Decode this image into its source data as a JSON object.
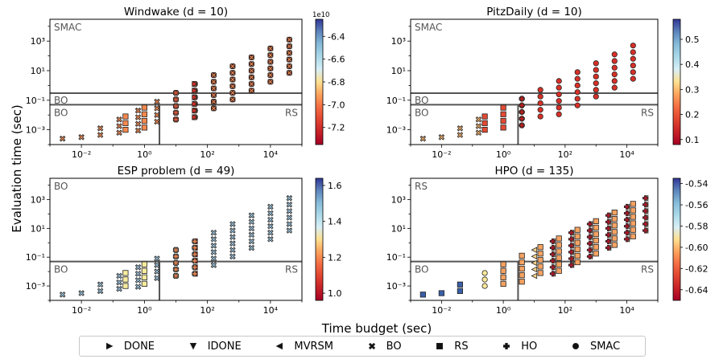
{
  "figure": {
    "ylabel": "Evaluation time (sec)",
    "xlabel": "Time budget (sec)"
  },
  "legend": [
    {
      "label": "DONE",
      "marker": "triangle-right"
    },
    {
      "label": "IDONE",
      "marker": "triangle-down"
    },
    {
      "label": "MVRSM",
      "marker": "triangle-left"
    },
    {
      "label": "BO",
      "marker": "x-filled"
    },
    {
      "label": "RS",
      "marker": "square"
    },
    {
      "label": "HO",
      "marker": "plus"
    },
    {
      "label": "SMAC",
      "marker": "circle"
    }
  ],
  "chart_data": [
    {
      "type": "scatter",
      "title": "Windwake (d = 10)",
      "x_scale": "log",
      "y_scale": "log",
      "xlim": [
        0.001,
        100000
      ],
      "ylim": [
        0.0001,
        30000
      ],
      "x_ticks": [
        "10⁻²",
        "10⁰",
        "10²",
        "10⁴"
      ],
      "y_ticks": [
        "10⁻³",
        "10⁻¹",
        "10¹",
        "10³"
      ],
      "region_lines": {
        "upper": 0.3,
        "lower": 0.05
      },
      "region_labels": {
        "top_left": "SMAC",
        "mid_left": "BO",
        "low_left": "BO",
        "low_right": "RS"
      },
      "vertical_line_x": 3,
      "colorbar": {
        "min": -7.35,
        "max": -6.25,
        "ticks": [
          "-6.4",
          "-6.6",
          "-6.8",
          "-7.0",
          "-7.2"
        ],
        "tick_values": [
          -6.4,
          -6.6,
          -6.8,
          -7.0,
          -7.2
        ],
        "offset_label": "1e10",
        "cmap": "RdYlBu"
      },
      "series": [
        {
          "method": "SMAC",
          "marker": "circle",
          "start_exp": 1.6,
          "end_exp": 4.6,
          "fill": "#c9211e"
        },
        {
          "method": "BO",
          "marker": "x-filled",
          "start_exp": -2.6,
          "end_exp": 4.6,
          "fill": "#f08a52"
        },
        {
          "method": "RS",
          "marker": "square",
          "start_exp": -0.6,
          "end_exp": 0.4,
          "fill": "#f5894f"
        },
        {
          "method": "HO",
          "marker": "plus",
          "start_exp": 1.0,
          "end_exp": 1.6,
          "fill": "#e65a3c"
        },
        {
          "method": "DONE",
          "marker": "triangle-right",
          "start_exp": 1.6,
          "end_exp": 1.6,
          "fill": "#d73027"
        }
      ]
    },
    {
      "type": "scatter",
      "title": "PitzDaily (d = 10)",
      "x_scale": "log",
      "y_scale": "log",
      "xlim": [
        0.001,
        100000
      ],
      "ylim": [
        0.0001,
        30000
      ],
      "x_ticks": [
        "10⁻²",
        "10⁰",
        "10²",
        "10⁴"
      ],
      "y_ticks": [
        "10⁻³",
        "10⁻¹",
        "10¹",
        "10³"
      ],
      "region_lines": {
        "upper": 0.3,
        "lower": 0.05
      },
      "region_labels": {
        "top_left": "SMAC",
        "mid_left": "BO",
        "low_left": "BO",
        "low_right": "RS"
      },
      "vertical_line_x": 3,
      "colorbar": {
        "min": 0.08,
        "max": 0.58,
        "ticks": [
          "0.5",
          "0.4",
          "0.3",
          "0.2",
          "0.1"
        ],
        "tick_values": [
          0.5,
          0.4,
          0.3,
          0.2,
          0.1
        ],
        "offset_label": "",
        "cmap": "RdYlBu"
      },
      "series": [
        {
          "method": "SMAC",
          "marker": "circle",
          "start_exp": 0.6,
          "end_exp": 4.6,
          "fill": "#d73027"
        },
        {
          "method": "BO",
          "marker": "x-filled",
          "start_exp": -2.6,
          "end_exp": -0.6,
          "fill": "#f7b26a"
        },
        {
          "method": "RS",
          "marker": "square",
          "start_exp": -0.6,
          "end_exp": 0.4,
          "fill": "#e34a33"
        },
        {
          "method": "HO",
          "marker": "plus",
          "start_exp": 0.6,
          "end_exp": 1.0,
          "fill": "#c9211e"
        }
      ]
    },
    {
      "type": "scatter",
      "title": "ESP problem  (d = 49)",
      "x_scale": "log",
      "y_scale": "log",
      "xlim": [
        0.001,
        100000
      ],
      "ylim": [
        0.0001,
        30000
      ],
      "x_ticks": [
        "10⁻²",
        "10⁰",
        "10²",
        "10⁴"
      ],
      "y_ticks": [
        "10⁻³",
        "10⁻¹",
        "10¹",
        "10³"
      ],
      "region_lines": {
        "lower": 0.05
      },
      "region_labels": {
        "top_left": "BO",
        "low_left": "BO",
        "low_right": "RS"
      },
      "vertical_line_x": 3,
      "colorbar": {
        "min": 0.96,
        "max": 1.64,
        "ticks": [
          "1.6",
          "1.4",
          "1.2",
          "1.0"
        ],
        "tick_values": [
          1.6,
          1.4,
          1.2,
          1.0
        ],
        "offset_label": "",
        "cmap": "RdYlBu"
      },
      "series": [
        {
          "method": "BO",
          "marker": "x-filled",
          "start_exp": -2.6,
          "end_exp": 4.6,
          "fill": "#9fc7e0"
        },
        {
          "method": "RS",
          "marker": "square",
          "start_exp": -0.6,
          "end_exp": 0.4,
          "fill": "#f7eb9f"
        },
        {
          "method": "MVRSM",
          "marker": "triangle-left",
          "start_exp": 1.6,
          "end_exp": 1.6,
          "fill": "#d73027"
        },
        {
          "method": "HO",
          "marker": "plus",
          "start_exp": 1.0,
          "end_exp": 1.6,
          "fill": "#f08a52"
        }
      ]
    },
    {
      "type": "scatter",
      "title": "HPO (d = 135)",
      "x_scale": "log",
      "y_scale": "log",
      "xlim": [
        0.001,
        100000
      ],
      "ylim": [
        0.0001,
        30000
      ],
      "x_ticks": [
        "10⁻²",
        "10⁰",
        "10²",
        "10⁴"
      ],
      "y_ticks": [
        "10⁻³",
        "10⁻¹",
        "10¹",
        "10³"
      ],
      "region_lines": {
        "lower": 0.05
      },
      "region_labels": {
        "top_left": "RS",
        "low_left": "BO",
        "low_right": "RS"
      },
      "vertical_line_x": 3,
      "colorbar": {
        "min": -0.65,
        "max": -0.535,
        "ticks": [
          "-0.54",
          "-0.56",
          "-0.58",
          "-0.60",
          "-0.62",
          "-0.64"
        ],
        "tick_values": [
          -0.54,
          -0.56,
          -0.58,
          -0.6,
          -0.62,
          -0.64
        ],
        "offset_label": "",
        "cmap": "RdYlBu"
      },
      "series": [
        {
          "method": "BO",
          "marker": "square",
          "start_exp": -2.6,
          "end_exp": -1.0,
          "fill": "#3a5fa8"
        },
        {
          "method": "SMAC",
          "marker": "circle",
          "start_exp": -0.6,
          "end_exp": 0.0,
          "fill": "#fee99a"
        },
        {
          "method": "RS",
          "marker": "square",
          "start_exp": 0.0,
          "end_exp": 4.6,
          "fill": "#f4a262"
        },
        {
          "method": "MVRSM",
          "marker": "triangle-left",
          "start_exp": 1.0,
          "end_exp": 4.6,
          "fill": "#fcd58a"
        },
        {
          "method": "HO",
          "marker": "plus",
          "start_exp": 1.6,
          "end_exp": 4.6,
          "fill": "#b2182b"
        }
      ]
    }
  ]
}
